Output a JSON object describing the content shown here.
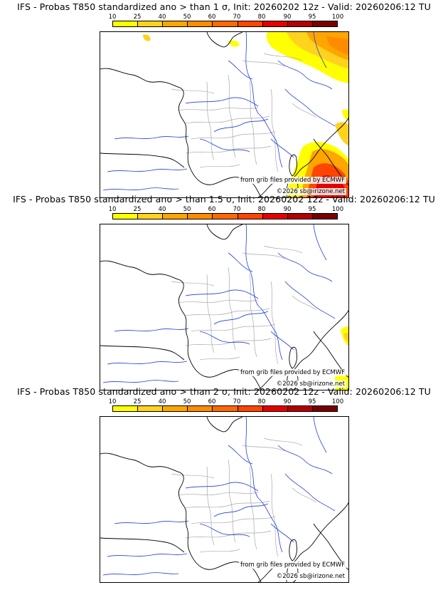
{
  "panels": [
    {
      "title": "IFS - Probas T850  standardized ano > than 1 σ, Init: 20260202 12z - Valid: 20260206:12 TU"
    },
    {
      "title": "IFS - Probas T850  standardized ano > than 1.5 σ, Init: 20260202 12z - Valid: 20260206:12 TU"
    },
    {
      "title": "IFS - Probas T850  standardized ano > than 2 σ, Init: 20260202 12z - Valid: 20260206:12 TU"
    }
  ],
  "scale": {
    "labels": [
      "10",
      "25",
      "40",
      "50",
      "60",
      "70",
      "80",
      "90",
      "95",
      "100"
    ],
    "colors": [
      "#ffff00",
      "#ffd21e",
      "#ffa500",
      "#ff8c00",
      "#ff6a00",
      "#ff4500",
      "#e60000",
      "#b40000",
      "#780000"
    ]
  },
  "credit": {
    "source": "from grib files provided by ECMWF",
    "copyright": "©2026 sb@irizone.net"
  },
  "colors": {
    "river": "#1f3fd8",
    "admin_border": "#a9a9a9",
    "coast": "#000000"
  }
}
